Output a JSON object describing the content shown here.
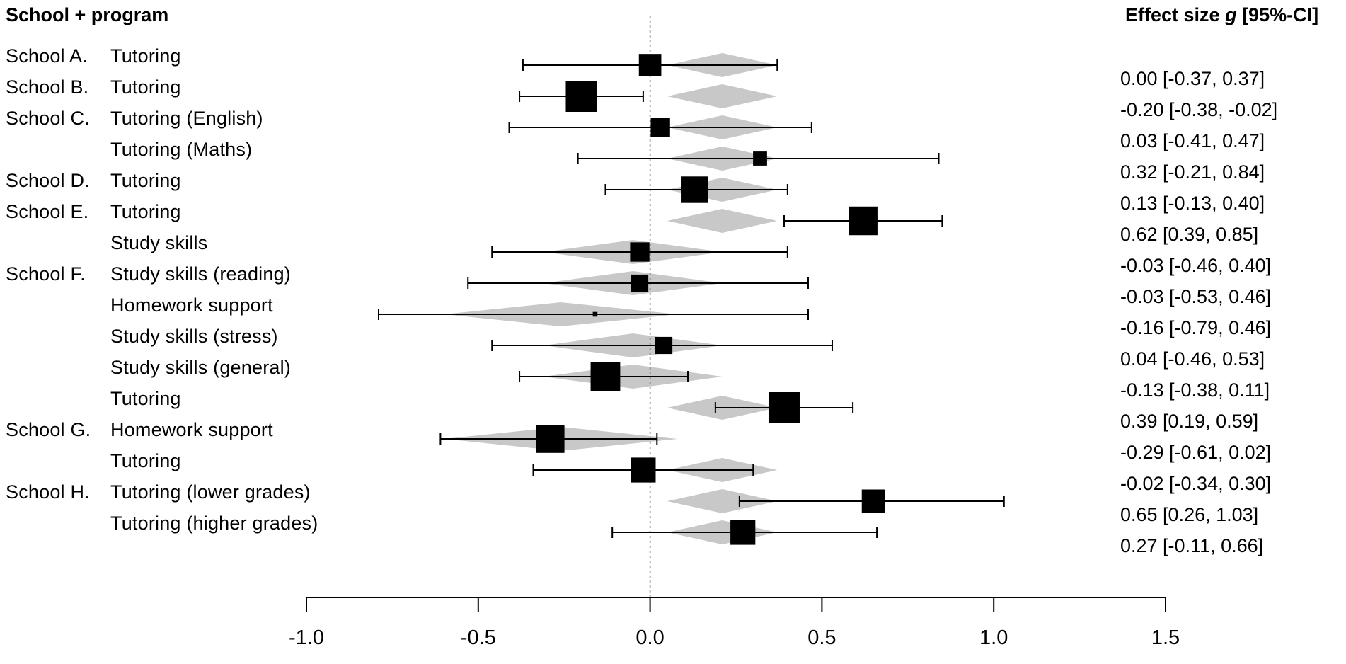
{
  "header": {
    "left_title": "School + program",
    "right_title_prefix": "Effect size ",
    "right_title_italic": "g",
    "right_title_suffix": " [95%-CI]"
  },
  "chart_data": {
    "type": "forest",
    "x_ticks": [
      "-1.0",
      "-0.5",
      "0.0",
      "0.5",
      "1.0",
      "1.5"
    ],
    "xlim": [
      -1.0,
      1.5
    ],
    "reference_line": 0.0,
    "rows": [
      {
        "school": "School A.",
        "program": "Tutoring",
        "g": 0.0,
        "lower": -0.37,
        "upper": 0.37,
        "text": "0.00 [-0.37, 0.37]",
        "weight": 0.72,
        "pred_center": 0.21,
        "pred_lower": 0.05,
        "pred_upper": 0.37
      },
      {
        "school": "School B.",
        "program": "Tutoring",
        "g": -0.2,
        "lower": -0.38,
        "upper": -0.02,
        "text": "-0.20 [-0.38, -0.02]",
        "weight": 1.0,
        "pred_center": 0.21,
        "pred_lower": 0.05,
        "pred_upper": 0.37
      },
      {
        "school": "School C.",
        "program": "Tutoring  (English)",
        "g": 0.03,
        "lower": -0.41,
        "upper": 0.47,
        "text": "0.03 [-0.41, 0.47]",
        "weight": 0.62,
        "pred_center": 0.21,
        "pred_lower": 0.05,
        "pred_upper": 0.37
      },
      {
        "school": "",
        "program": "Tutoring  (Maths)",
        "g": 0.32,
        "lower": -0.21,
        "upper": 0.84,
        "text": "0.32 [-0.21, 0.84]",
        "weight": 0.45,
        "pred_center": 0.21,
        "pred_lower": 0.05,
        "pred_upper": 0.37
      },
      {
        "school": "School D.",
        "program": "Tutoring",
        "g": 0.13,
        "lower": -0.13,
        "upper": 0.4,
        "text": "0.13 [-0.13, 0.40]",
        "weight": 0.85,
        "pred_center": 0.21,
        "pred_lower": 0.05,
        "pred_upper": 0.37
      },
      {
        "school": "School E.",
        "program": "Tutoring",
        "g": 0.62,
        "lower": 0.39,
        "upper": 0.85,
        "text": "0.62 [0.39, 0.85]",
        "weight": 0.92,
        "pred_center": 0.21,
        "pred_lower": 0.05,
        "pred_upper": 0.37
      },
      {
        "school": "",
        "program": "Study skills",
        "g": -0.03,
        "lower": -0.46,
        "upper": 0.4,
        "text": "-0.03 [-0.46, 0.40]",
        "weight": 0.62,
        "pred_center": -0.05,
        "pred_lower": -0.31,
        "pred_upper": 0.21
      },
      {
        "school": "School F.",
        "program": "Study skills (reading)",
        "g": -0.03,
        "lower": -0.53,
        "upper": 0.46,
        "text": "-0.03 [-0.53, 0.46]",
        "weight": 0.55,
        "pred_center": -0.05,
        "pred_lower": -0.31,
        "pred_upper": 0.21
      },
      {
        "school": "",
        "program": "Homework  support",
        "g": -0.16,
        "lower": -0.79,
        "upper": 0.46,
        "text": "-0.16 [-0.79, 0.46]",
        "weight": 0.15,
        "pred_center": -0.26,
        "pred_lower": -0.6,
        "pred_upper": 0.08
      },
      {
        "school": "",
        "program": "Study skills (stress)",
        "g": 0.04,
        "lower": -0.46,
        "upper": 0.53,
        "text": "0.04 [-0.46, 0.53]",
        "weight": 0.55,
        "pred_center": -0.05,
        "pred_lower": -0.31,
        "pred_upper": 0.21
      },
      {
        "school": "",
        "program": "Study skills (general)",
        "g": -0.13,
        "lower": -0.38,
        "upper": 0.11,
        "text": "-0.13 [-0.38, 0.11]",
        "weight": 0.95,
        "pred_center": -0.05,
        "pred_lower": -0.31,
        "pred_upper": 0.21
      },
      {
        "school": "",
        "program": "Tutoring",
        "g": 0.39,
        "lower": 0.19,
        "upper": 0.59,
        "text": "0.39 [0.19, 0.59]",
        "weight": 1.0,
        "pred_center": 0.21,
        "pred_lower": 0.05,
        "pred_upper": 0.37
      },
      {
        "school": "School G.",
        "program": "Homework support",
        "g": -0.29,
        "lower": -0.61,
        "upper": 0.02,
        "text": "-0.29 [-0.61, 0.02]",
        "weight": 0.9,
        "pred_center": -0.26,
        "pred_lower": -0.6,
        "pred_upper": 0.08
      },
      {
        "school": "",
        "program": "Tutoring",
        "g": -0.02,
        "lower": -0.34,
        "upper": 0.3,
        "text": "-0.02 [-0.34, 0.30]",
        "weight": 0.8,
        "pred_center": 0.21,
        "pred_lower": 0.05,
        "pred_upper": 0.37
      },
      {
        "school": "School H.",
        "program": "Tutoring (lower grades)",
        "g": 0.65,
        "lower": 0.26,
        "upper": 1.03,
        "text": "0.65 [0.26, 1.03]",
        "weight": 0.75,
        "pred_center": 0.21,
        "pred_lower": 0.05,
        "pred_upper": 0.37
      },
      {
        "school": "",
        "program": "Tutoring  (higher grades)",
        "g": 0.27,
        "lower": -0.11,
        "upper": 0.66,
        "text": "0.27 [-0.11, 0.66]",
        "weight": 0.8,
        "pred_center": 0.21,
        "pred_lower": 0.05,
        "pred_upper": 0.37
      }
    ],
    "colors": {
      "square": "#000000",
      "ci_line": "#000000",
      "prediction_diamond": "#c8c8c8",
      "reference_line": "#555555"
    }
  }
}
